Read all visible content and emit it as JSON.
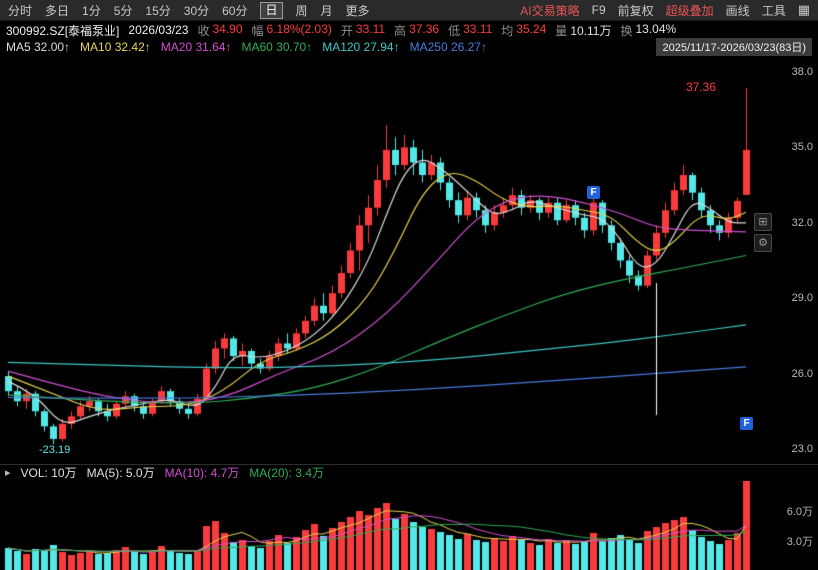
{
  "toolbar": {
    "tabs": [
      {
        "label": "分时",
        "active": false
      },
      {
        "label": "多日",
        "active": false
      },
      {
        "label": "1分",
        "active": false
      },
      {
        "label": "5分",
        "active": false
      },
      {
        "label": "15分",
        "active": false
      },
      {
        "label": "30分",
        "active": false
      },
      {
        "label": "60分",
        "active": false
      },
      {
        "label": "日",
        "active": true
      },
      {
        "label": "周",
        "active": false
      },
      {
        "label": "月",
        "active": false
      },
      {
        "label": "更多",
        "active": false
      }
    ],
    "right_items": [
      {
        "label": "AI交易策略",
        "color": "#e85454"
      },
      {
        "label": "F9",
        "color": "#c8c8c8"
      },
      {
        "label": "前复权",
        "color": "#c8c8c8"
      },
      {
        "label": "超级叠加",
        "color": "#e85454"
      },
      {
        "label": "画线",
        "color": "#c8c8c8"
      },
      {
        "label": "工具",
        "color": "#c8c8c8"
      }
    ],
    "grid_icon": "▦"
  },
  "info_row": {
    "symbol": "300992.SZ[泰福泵业]",
    "date": "2026/03/23",
    "fields": [
      {
        "label": "收",
        "value": "34.90",
        "color": "#ff3a3a"
      },
      {
        "label": "幅",
        "value": "6.18%(2.03)",
        "color": "#ff3a3a"
      },
      {
        "label": "开",
        "value": "33.11",
        "color": "#ff3a3a"
      },
      {
        "label": "高",
        "value": "37.36",
        "color": "#ff3a3a"
      },
      {
        "label": "低",
        "value": "33.11",
        "color": "#ff3a3a"
      },
      {
        "label": "均",
        "value": "35.24",
        "color": "#ff3a3a"
      },
      {
        "label": "量",
        "value": "10.11万",
        "color": "#e0e0e0"
      },
      {
        "label": "换",
        "value": "13.04%",
        "color": "#e0e0e0"
      }
    ]
  },
  "ma_row": {
    "items": [
      {
        "label": "MA5",
        "value": "32.00↑",
        "color": "#dcdcdc"
      },
      {
        "label": "MA10",
        "value": "32.42↑",
        "color": "#e8d44d"
      },
      {
        "label": "MA20",
        "value": "31.64↑",
        "color": "#d24fd2"
      },
      {
        "label": "MA60",
        "value": "30.70↑",
        "color": "#2fae55"
      },
      {
        "label": "MA120",
        "value": "27.94↑",
        "color": "#3fc6c6"
      },
      {
        "label": "MA250",
        "value": "26.27↑",
        "color": "#4a7be0"
      }
    ],
    "range_label": "2025/11/17-2026/03/23(83日)"
  },
  "volume_header": {
    "caret": "▸",
    "items": [
      {
        "label": "VOL:",
        "value": "10万",
        "color": "#e0e0e0"
      },
      {
        "label": "MA(5):",
        "value": "5.0万",
        "color": "#e0e0e0"
      },
      {
        "label": "MA(10):",
        "value": "4.7万",
        "color": "#d24fd2"
      },
      {
        "label": "MA(20):",
        "value": "3.4万",
        "color": "#2fae55"
      }
    ]
  },
  "right_tools": [
    {
      "icon": "⊞"
    },
    {
      "icon": "⚙"
    }
  ],
  "chart_data": {
    "type": "candlestick",
    "symbol": "300992.SZ 泰福泵业",
    "period": "日K",
    "date_range": "2025/11/17-2026/03/23",
    "days": 83,
    "y_axis": {
      "ticks": [
        38.0,
        35.0,
        32.0,
        29.0,
        26.0,
        23.0
      ],
      "min": 22.6,
      "max": 38.6
    },
    "volume_axis": {
      "ticks_wan": [
        6.0,
        3.0
      ],
      "max_wan": 8.8
    },
    "colors": {
      "up": "#f93b3b",
      "down": "#55e8e8",
      "background": "#000000"
    },
    "candles": [
      [
        25.9,
        26.1,
        25.1,
        25.3
      ],
      [
        25.3,
        25.5,
        24.7,
        24.9
      ],
      [
        24.9,
        25.4,
        24.6,
        25.2
      ],
      [
        25.2,
        25.3,
        24.3,
        24.5
      ],
      [
        24.5,
        24.6,
        23.7,
        23.9
      ],
      [
        23.9,
        24.0,
        23.19,
        23.4
      ],
      [
        23.4,
        24.2,
        23.3,
        24.0
      ],
      [
        24.0,
        24.5,
        23.8,
        24.3
      ],
      [
        24.3,
        24.9,
        24.2,
        24.7
      ],
      [
        24.7,
        25.1,
        24.5,
        24.9
      ],
      [
        24.9,
        25.0,
        24.3,
        24.5
      ],
      [
        24.5,
        24.8,
        24.1,
        24.3
      ],
      [
        24.3,
        24.9,
        24.2,
        24.8
      ],
      [
        24.8,
        25.3,
        24.6,
        25.1
      ],
      [
        25.1,
        25.2,
        24.5,
        24.7
      ],
      [
        24.7,
        24.8,
        24.2,
        24.4
      ],
      [
        24.4,
        25.0,
        24.3,
        24.9
      ],
      [
        24.9,
        25.5,
        24.8,
        25.3
      ],
      [
        25.3,
        25.4,
        24.7,
        24.9
      ],
      [
        24.9,
        25.0,
        24.4,
        24.6
      ],
      [
        24.6,
        24.8,
        24.2,
        24.4
      ],
      [
        24.4,
        25.2,
        24.3,
        25.0
      ],
      [
        25.0,
        26.4,
        24.9,
        26.2
      ],
      [
        26.2,
        27.3,
        26.0,
        27.0
      ],
      [
        27.0,
        27.6,
        26.6,
        27.4
      ],
      [
        27.4,
        27.5,
        26.5,
        26.7
      ],
      [
        26.7,
        27.2,
        26.3,
        26.9
      ],
      [
        26.9,
        27.0,
        26.2,
        26.4
      ],
      [
        26.4,
        26.6,
        26.0,
        26.2
      ],
      [
        26.2,
        26.9,
        26.1,
        26.7
      ],
      [
        26.7,
        27.4,
        26.5,
        27.2
      ],
      [
        27.2,
        27.6,
        26.8,
        27.0
      ],
      [
        27.0,
        27.8,
        26.9,
        27.6
      ],
      [
        27.6,
        28.3,
        27.4,
        28.1
      ],
      [
        28.1,
        29.0,
        27.9,
        28.7
      ],
      [
        28.7,
        29.2,
        28.1,
        28.4
      ],
      [
        28.4,
        29.5,
        28.3,
        29.2
      ],
      [
        29.2,
        30.3,
        29.0,
        30.0
      ],
      [
        30.0,
        31.2,
        29.8,
        30.9
      ],
      [
        30.9,
        32.3,
        30.1,
        31.9
      ],
      [
        31.9,
        33.1,
        31.2,
        32.6
      ],
      [
        32.6,
        34.3,
        32.3,
        33.7
      ],
      [
        33.7,
        35.9,
        33.4,
        34.9
      ],
      [
        34.9,
        35.4,
        33.9,
        34.3
      ],
      [
        34.3,
        35.5,
        34.1,
        35.0
      ],
      [
        35.0,
        35.3,
        33.9,
        34.4
      ],
      [
        34.4,
        34.9,
        33.6,
        33.9
      ],
      [
        33.9,
        34.7,
        33.7,
        34.4
      ],
      [
        34.4,
        34.6,
        33.3,
        33.6
      ],
      [
        33.6,
        33.8,
        32.6,
        32.9
      ],
      [
        32.9,
        33.2,
        32.0,
        32.3
      ],
      [
        32.3,
        33.3,
        32.1,
        33.0
      ],
      [
        33.0,
        33.2,
        32.2,
        32.5
      ],
      [
        32.5,
        32.7,
        31.6,
        31.9
      ],
      [
        31.9,
        32.7,
        31.7,
        32.4
      ],
      [
        32.4,
        33.0,
        32.2,
        32.7
      ],
      [
        32.7,
        33.4,
        32.5,
        33.1
      ],
      [
        33.1,
        33.3,
        32.3,
        32.6
      ],
      [
        32.6,
        33.1,
        32.4,
        32.9
      ],
      [
        32.9,
        33.0,
        32.1,
        32.4
      ],
      [
        32.4,
        33.0,
        32.2,
        32.8
      ],
      [
        32.8,
        33.0,
        31.9,
        32.1
      ],
      [
        32.1,
        32.9,
        32.0,
        32.7
      ],
      [
        32.7,
        32.9,
        31.9,
        32.2
      ],
      [
        32.2,
        32.4,
        31.4,
        31.7
      ],
      [
        31.7,
        33.0,
        31.5,
        32.8
      ],
      [
        32.8,
        32.9,
        31.6,
        31.9
      ],
      [
        31.9,
        32.1,
        30.9,
        31.2
      ],
      [
        31.2,
        31.4,
        30.2,
        30.5
      ],
      [
        30.5,
        30.7,
        29.6,
        29.9
      ],
      [
        29.9,
        30.1,
        29.3,
        29.5
      ],
      [
        29.5,
        30.9,
        29.4,
        30.7
      ],
      [
        30.7,
        31.9,
        30.5,
        31.6
      ],
      [
        31.6,
        32.8,
        31.4,
        32.5
      ],
      [
        32.5,
        33.6,
        32.3,
        33.3
      ],
      [
        33.3,
        34.3,
        33.1,
        33.9
      ],
      [
        33.9,
        34.0,
        32.9,
        33.2
      ],
      [
        33.2,
        33.4,
        32.2,
        32.5
      ],
      [
        32.5,
        32.7,
        31.6,
        31.9
      ],
      [
        31.9,
        32.1,
        31.3,
        31.6
      ],
      [
        31.6,
        32.4,
        31.4,
        32.2
      ],
      [
        32.2,
        33.0,
        32.0,
        32.87
      ],
      [
        33.11,
        37.36,
        33.11,
        34.9
      ]
    ],
    "volumes_wan": [
      2.1,
      1.8,
      1.5,
      2.0,
      1.9,
      2.4,
      1.7,
      1.4,
      1.6,
      1.8,
      1.5,
      1.6,
      1.9,
      2.2,
      1.7,
      1.5,
      1.8,
      2.3,
      1.9,
      1.6,
      1.5,
      1.8,
      4.3,
      4.8,
      3.6,
      2.7,
      2.9,
      2.3,
      2.1,
      2.8,
      3.4,
      2.6,
      3.2,
      3.9,
      4.5,
      3.3,
      4.1,
      4.7,
      5.2,
      5.8,
      5.4,
      6.1,
      6.6,
      5.0,
      5.5,
      4.7,
      4.2,
      4.0,
      3.7,
      3.4,
      3.0,
      3.5,
      2.9,
      2.7,
      3.1,
      2.8,
      3.3,
      2.9,
      2.6,
      2.4,
      3.0,
      2.6,
      2.9,
      2.5,
      2.7,
      3.6,
      2.8,
      3.1,
      3.4,
      3.0,
      2.6,
      3.8,
      4.2,
      4.6,
      4.9,
      5.2,
      3.9,
      3.2,
      2.8,
      2.5,
      2.9,
      3.6,
      10.11
    ],
    "ma_lines": [
      {
        "name": "MA5",
        "color": "#dcdcdc",
        "points": [
          [
            0,
            25.7
          ],
          [
            3,
            25.2
          ],
          [
            6,
            23.9
          ],
          [
            9,
            24.3
          ],
          [
            12,
            24.6
          ],
          [
            15,
            24.8
          ],
          [
            18,
            25.0
          ],
          [
            21,
            24.6
          ],
          [
            23,
            25.4
          ],
          [
            25,
            26.8
          ],
          [
            28,
            26.6
          ],
          [
            31,
            26.9
          ],
          [
            34,
            27.5
          ],
          [
            37,
            28.6
          ],
          [
            40,
            30.4
          ],
          [
            42,
            32.3
          ],
          [
            44,
            34.0
          ],
          [
            46,
            34.6
          ],
          [
            48,
            34.2
          ],
          [
            50,
            33.6
          ],
          [
            52,
            32.9
          ],
          [
            54,
            32.3
          ],
          [
            56,
            32.5
          ],
          [
            58,
            32.9
          ],
          [
            60,
            32.7
          ],
          [
            62,
            32.5
          ],
          [
            64,
            32.3
          ],
          [
            66,
            32.2
          ],
          [
            68,
            31.4
          ],
          [
            70,
            30.2
          ],
          [
            72,
            30.3
          ],
          [
            74,
            31.5
          ],
          [
            76,
            32.9
          ],
          [
            78,
            32.6
          ],
          [
            80,
            32.0
          ],
          [
            82,
            32.0
          ]
        ]
      },
      {
        "name": "MA10",
        "color": "#e8d44d",
        "points": [
          [
            0,
            25.9
          ],
          [
            5,
            25.2
          ],
          [
            10,
            24.5
          ],
          [
            15,
            24.7
          ],
          [
            20,
            24.7
          ],
          [
            24,
            25.3
          ],
          [
            28,
            26.5
          ],
          [
            32,
            26.9
          ],
          [
            36,
            27.6
          ],
          [
            40,
            29.0
          ],
          [
            43,
            30.9
          ],
          [
            46,
            33.2
          ],
          [
            49,
            34.1
          ],
          [
            52,
            33.7
          ],
          [
            55,
            32.9
          ],
          [
            58,
            32.6
          ],
          [
            61,
            32.7
          ],
          [
            64,
            32.5
          ],
          [
            67,
            32.3
          ],
          [
            70,
            31.2
          ],
          [
            72,
            30.8
          ],
          [
            74,
            31.2
          ],
          [
            77,
            32.4
          ],
          [
            80,
            32.1
          ],
          [
            82,
            32.42
          ]
        ]
      },
      {
        "name": "MA20",
        "color": "#d24fd2",
        "points": [
          [
            0,
            26.1
          ],
          [
            6,
            25.5
          ],
          [
            12,
            25.0
          ],
          [
            18,
            24.8
          ],
          [
            24,
            25.0
          ],
          [
            30,
            26.0
          ],
          [
            36,
            26.8
          ],
          [
            42,
            28.3
          ],
          [
            48,
            30.6
          ],
          [
            52,
            32.2
          ],
          [
            56,
            33.0
          ],
          [
            60,
            33.1
          ],
          [
            64,
            32.8
          ],
          [
            68,
            32.4
          ],
          [
            72,
            31.8
          ],
          [
            76,
            31.7
          ],
          [
            82,
            31.64
          ]
        ]
      },
      {
        "name": "MA60",
        "color": "#2fae55",
        "points": [
          [
            0,
            25.15
          ],
          [
            10,
            24.9
          ],
          [
            20,
            24.8
          ],
          [
            27,
            25.0
          ],
          [
            34,
            25.4
          ],
          [
            41,
            26.2
          ],
          [
            48,
            27.3
          ],
          [
            55,
            28.3
          ],
          [
            62,
            29.2
          ],
          [
            69,
            29.8
          ],
          [
            75,
            30.2
          ],
          [
            82,
            30.7
          ]
        ]
      },
      {
        "name": "MA120",
        "color": "#3fc6c6",
        "points": [
          [
            0,
            26.45
          ],
          [
            12,
            26.32
          ],
          [
            24,
            26.22
          ],
          [
            36,
            26.28
          ],
          [
            48,
            26.55
          ],
          [
            58,
            26.9
          ],
          [
            66,
            27.2
          ],
          [
            74,
            27.55
          ],
          [
            82,
            27.94
          ]
        ]
      },
      {
        "name": "MA250",
        "color": "#4a7be0",
        "points": [
          [
            0,
            25.05
          ],
          [
            15,
            25.0
          ],
          [
            30,
            25.1
          ],
          [
            45,
            25.35
          ],
          [
            60,
            25.7
          ],
          [
            72,
            26.0
          ],
          [
            82,
            26.27
          ]
        ]
      }
    ],
    "vol_ma_colors": {
      "ma5": "#e8d44d",
      "ma10": "#d24fd2",
      "ma20": "#2fae55"
    },
    "annotations": {
      "high_label": {
        "text": "37.36",
        "day": 82,
        "price": 37.36
      },
      "low_label": {
        "text": "-23.19",
        "day": 5,
        "price": 23.19
      },
      "markers": [
        {
          "label": "F",
          "day": 65,
          "price": 33.2
        },
        {
          "label": "F",
          "day": 82,
          "price": 24.0
        }
      ],
      "vline": {
        "day": 72,
        "price_from": 29.6,
        "price_to": 24.35
      }
    }
  }
}
